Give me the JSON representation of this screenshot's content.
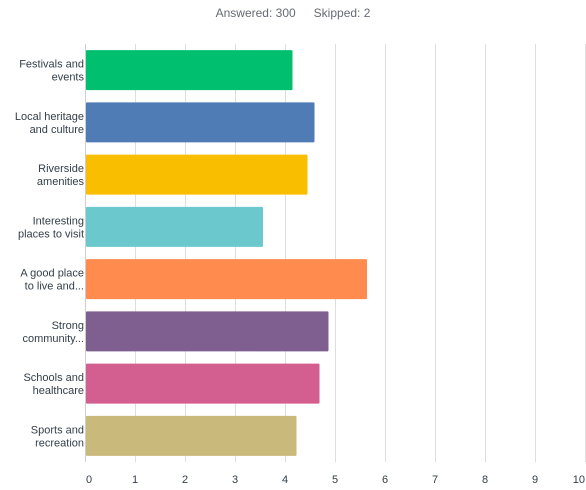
{
  "summary": {
    "answered": "Answered: 300",
    "skipped": "Skipped: 2"
  },
  "chart_data": {
    "type": "bar",
    "orientation": "horizontal",
    "categories": [
      [
        "Festivals and",
        "events"
      ],
      [
        "Local heritage",
        "and culture"
      ],
      [
        "Riverside",
        "amenities"
      ],
      [
        "Interesting",
        "places to visit"
      ],
      [
        "A good place",
        "to live and..."
      ],
      [
        "Strong",
        "community..."
      ],
      [
        "Schools and",
        "healthcare"
      ],
      [
        "Sports and",
        "recreation"
      ]
    ],
    "values": [
      4.13,
      4.57,
      4.43,
      3.54,
      5.62,
      4.85,
      4.67,
      4.21
    ],
    "colors": [
      "#00bf6f",
      "#507cb6",
      "#f9be00",
      "#6bc8cd",
      "#ff8b4f",
      "#7f5f90",
      "#d25f90",
      "#c9b97a"
    ],
    "xlim": [
      0,
      10
    ],
    "xticks": [
      "0",
      "1",
      "2",
      "3",
      "4",
      "5",
      "6",
      "7",
      "8",
      "9",
      "10"
    ],
    "grid": true,
    "title": "",
    "xlabel": "",
    "ylabel": ""
  }
}
